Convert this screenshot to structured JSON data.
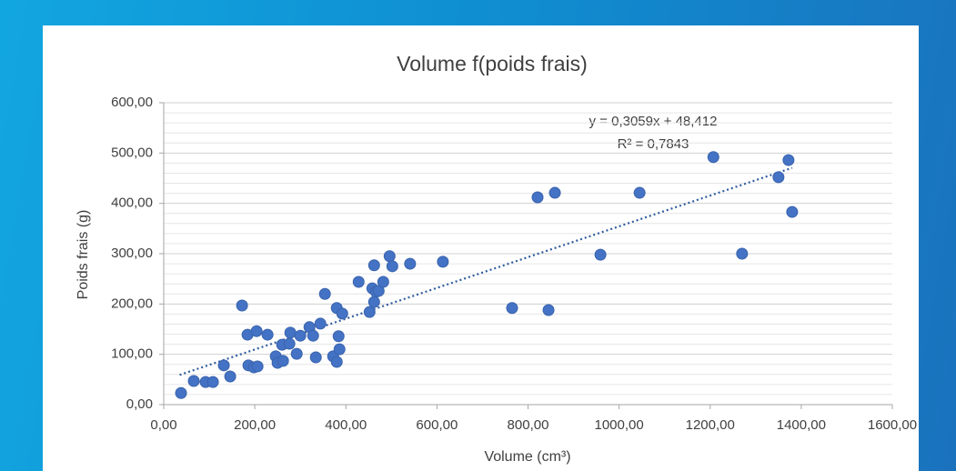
{
  "chart_data": {
    "type": "scatter",
    "title": "Volume f(poids frais)",
    "xlabel": "Volume (cm³)",
    "ylabel": "Poids frais (g)",
    "color": "#4472c4",
    "grid": true,
    "x": [
      38,
      66,
      92,
      108,
      132,
      146,
      172,
      184,
      204,
      228,
      186,
      198,
      206,
      246,
      250,
      262,
      260,
      276,
      278,
      292,
      300,
      320,
      328,
      334,
      344,
      354,
      372,
      380,
      380,
      384,
      386,
      392,
      428,
      452,
      458,
      462,
      466,
      462,
      472,
      482,
      496,
      502,
      541,
      613,
      765,
      821,
      845,
      859,
      959,
      1045,
      1207,
      1270,
      1350,
      1372,
      1380
    ],
    "values": [
      23,
      47,
      45,
      45,
      78,
      56,
      197,
      139,
      146,
      139,
      78,
      74,
      76,
      96,
      83,
      87,
      119,
      121,
      143,
      101,
      137,
      154,
      137,
      94,
      161,
      220,
      96,
      85,
      192,
      136,
      110,
      181,
      244,
      184,
      231,
      277,
      224,
      204,
      226,
      244,
      295,
      275,
      280,
      284,
      192,
      412,
      188,
      421,
      298,
      421,
      492,
      300,
      452,
      486,
      383
    ],
    "xlim": [
      0,
      1600
    ],
    "ylim": [
      0,
      600
    ],
    "xticks": [
      {
        "value": 0,
        "label": "0,00"
      },
      {
        "value": 200,
        "label": "200,00"
      },
      {
        "value": 400,
        "label": "400,00"
      },
      {
        "value": 600,
        "label": "600,00"
      },
      {
        "value": 800,
        "label": "800,00"
      },
      {
        "value": 1000,
        "label": "1000,00"
      },
      {
        "value": 1200,
        "label": "1200,00"
      },
      {
        "value": 1400,
        "label": "1400,00"
      },
      {
        "value": 1600,
        "label": "1600,00"
      }
    ],
    "yticks": [
      {
        "value": 0,
        "label": "0,00"
      },
      {
        "value": 100,
        "label": "100,00"
      },
      {
        "value": 200,
        "label": "200,00"
      },
      {
        "value": 300,
        "label": "300,00"
      },
      {
        "value": 400,
        "label": "400,00"
      },
      {
        "value": 500,
        "label": "500,00"
      },
      {
        "value": 600,
        "label": "600,00"
      }
    ],
    "trendline": {
      "label": "y = 0,3059x + 48,412",
      "r2_label": "R² = 0,7843",
      "slope": 0.3059,
      "intercept": 48.412,
      "xrange": [
        35,
        1380
      ],
      "color": "#2e5c9e"
    }
  }
}
